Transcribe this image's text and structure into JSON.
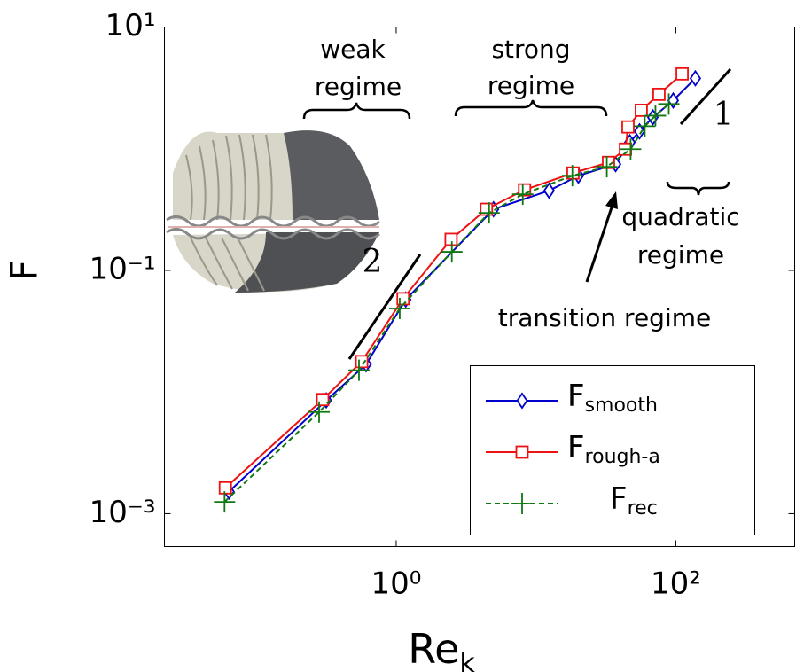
{
  "chart_data": {
    "type": "line",
    "xlabel": "Rek",
    "ylabel": "F",
    "xscale": "log",
    "yscale": "log",
    "xlim": [
      0.022,
      708
    ],
    "ylim": [
      0.000537,
      10
    ],
    "xticks": [
      {
        "value": 1,
        "label": "10⁰"
      },
      {
        "value": 100,
        "label": "10²"
      }
    ],
    "yticks": [
      {
        "value": 0.001,
        "label": "10⁻³"
      },
      {
        "value": 0.1,
        "label": "10⁻¹"
      },
      {
        "value": 10,
        "label": "10¹"
      }
    ],
    "legend": "lower right",
    "annotations": [
      "weak",
      "regime",
      "strong",
      "regime",
      "quadratic",
      "regime",
      "transition regime",
      "1",
      "2"
    ],
    "series": [
      {
        "name": "Fsmooth",
        "color": "#0000cc",
        "marker": "diamond",
        "linestyle": "solid",
        "x": [
          0.0637,
          0.316,
          0.609,
          1.17,
          4.97,
          12.4,
          20.1,
          37.1,
          46.9,
          55.0,
          68.5,
          95.8,
          138
        ],
        "values": [
          0.00152,
          0.00853,
          0.0169,
          0.0575,
          0.318,
          0.452,
          0.6,
          0.746,
          1.13,
          1.39,
          1.81,
          2.49,
          3.79
        ]
      },
      {
        "name": "Frough-a",
        "color": "#ee1111",
        "marker": "square",
        "linestyle": "solid",
        "x": [
          0.06,
          0.298,
          0.567,
          1.12,
          2.47,
          4.42,
          8.28,
          18.4,
          33.0,
          43.6,
          45.5,
          56.6,
          75.8,
          111
        ],
        "values": [
          0.00163,
          0.00867,
          0.0178,
          0.0585,
          0.18,
          0.318,
          0.459,
          0.631,
          0.771,
          0.991,
          1.51,
          2.07,
          2.8,
          4.12
        ]
      },
      {
        "name": "Frec",
        "color": "#117711",
        "marker": "plus",
        "linestyle": "dashed",
        "x": [
          0.0592,
          0.281,
          0.542,
          1.06,
          2.5,
          4.62,
          8.04,
          18.2,
          32.1,
          47.5,
          60.0,
          71.5,
          89.1
        ],
        "values": [
          0.00125,
          0.00685,
          0.0151,
          0.0486,
          0.142,
          0.297,
          0.422,
          0.6,
          0.71,
          0.991,
          1.53,
          1.87,
          2.33
        ]
      }
    ]
  }
}
